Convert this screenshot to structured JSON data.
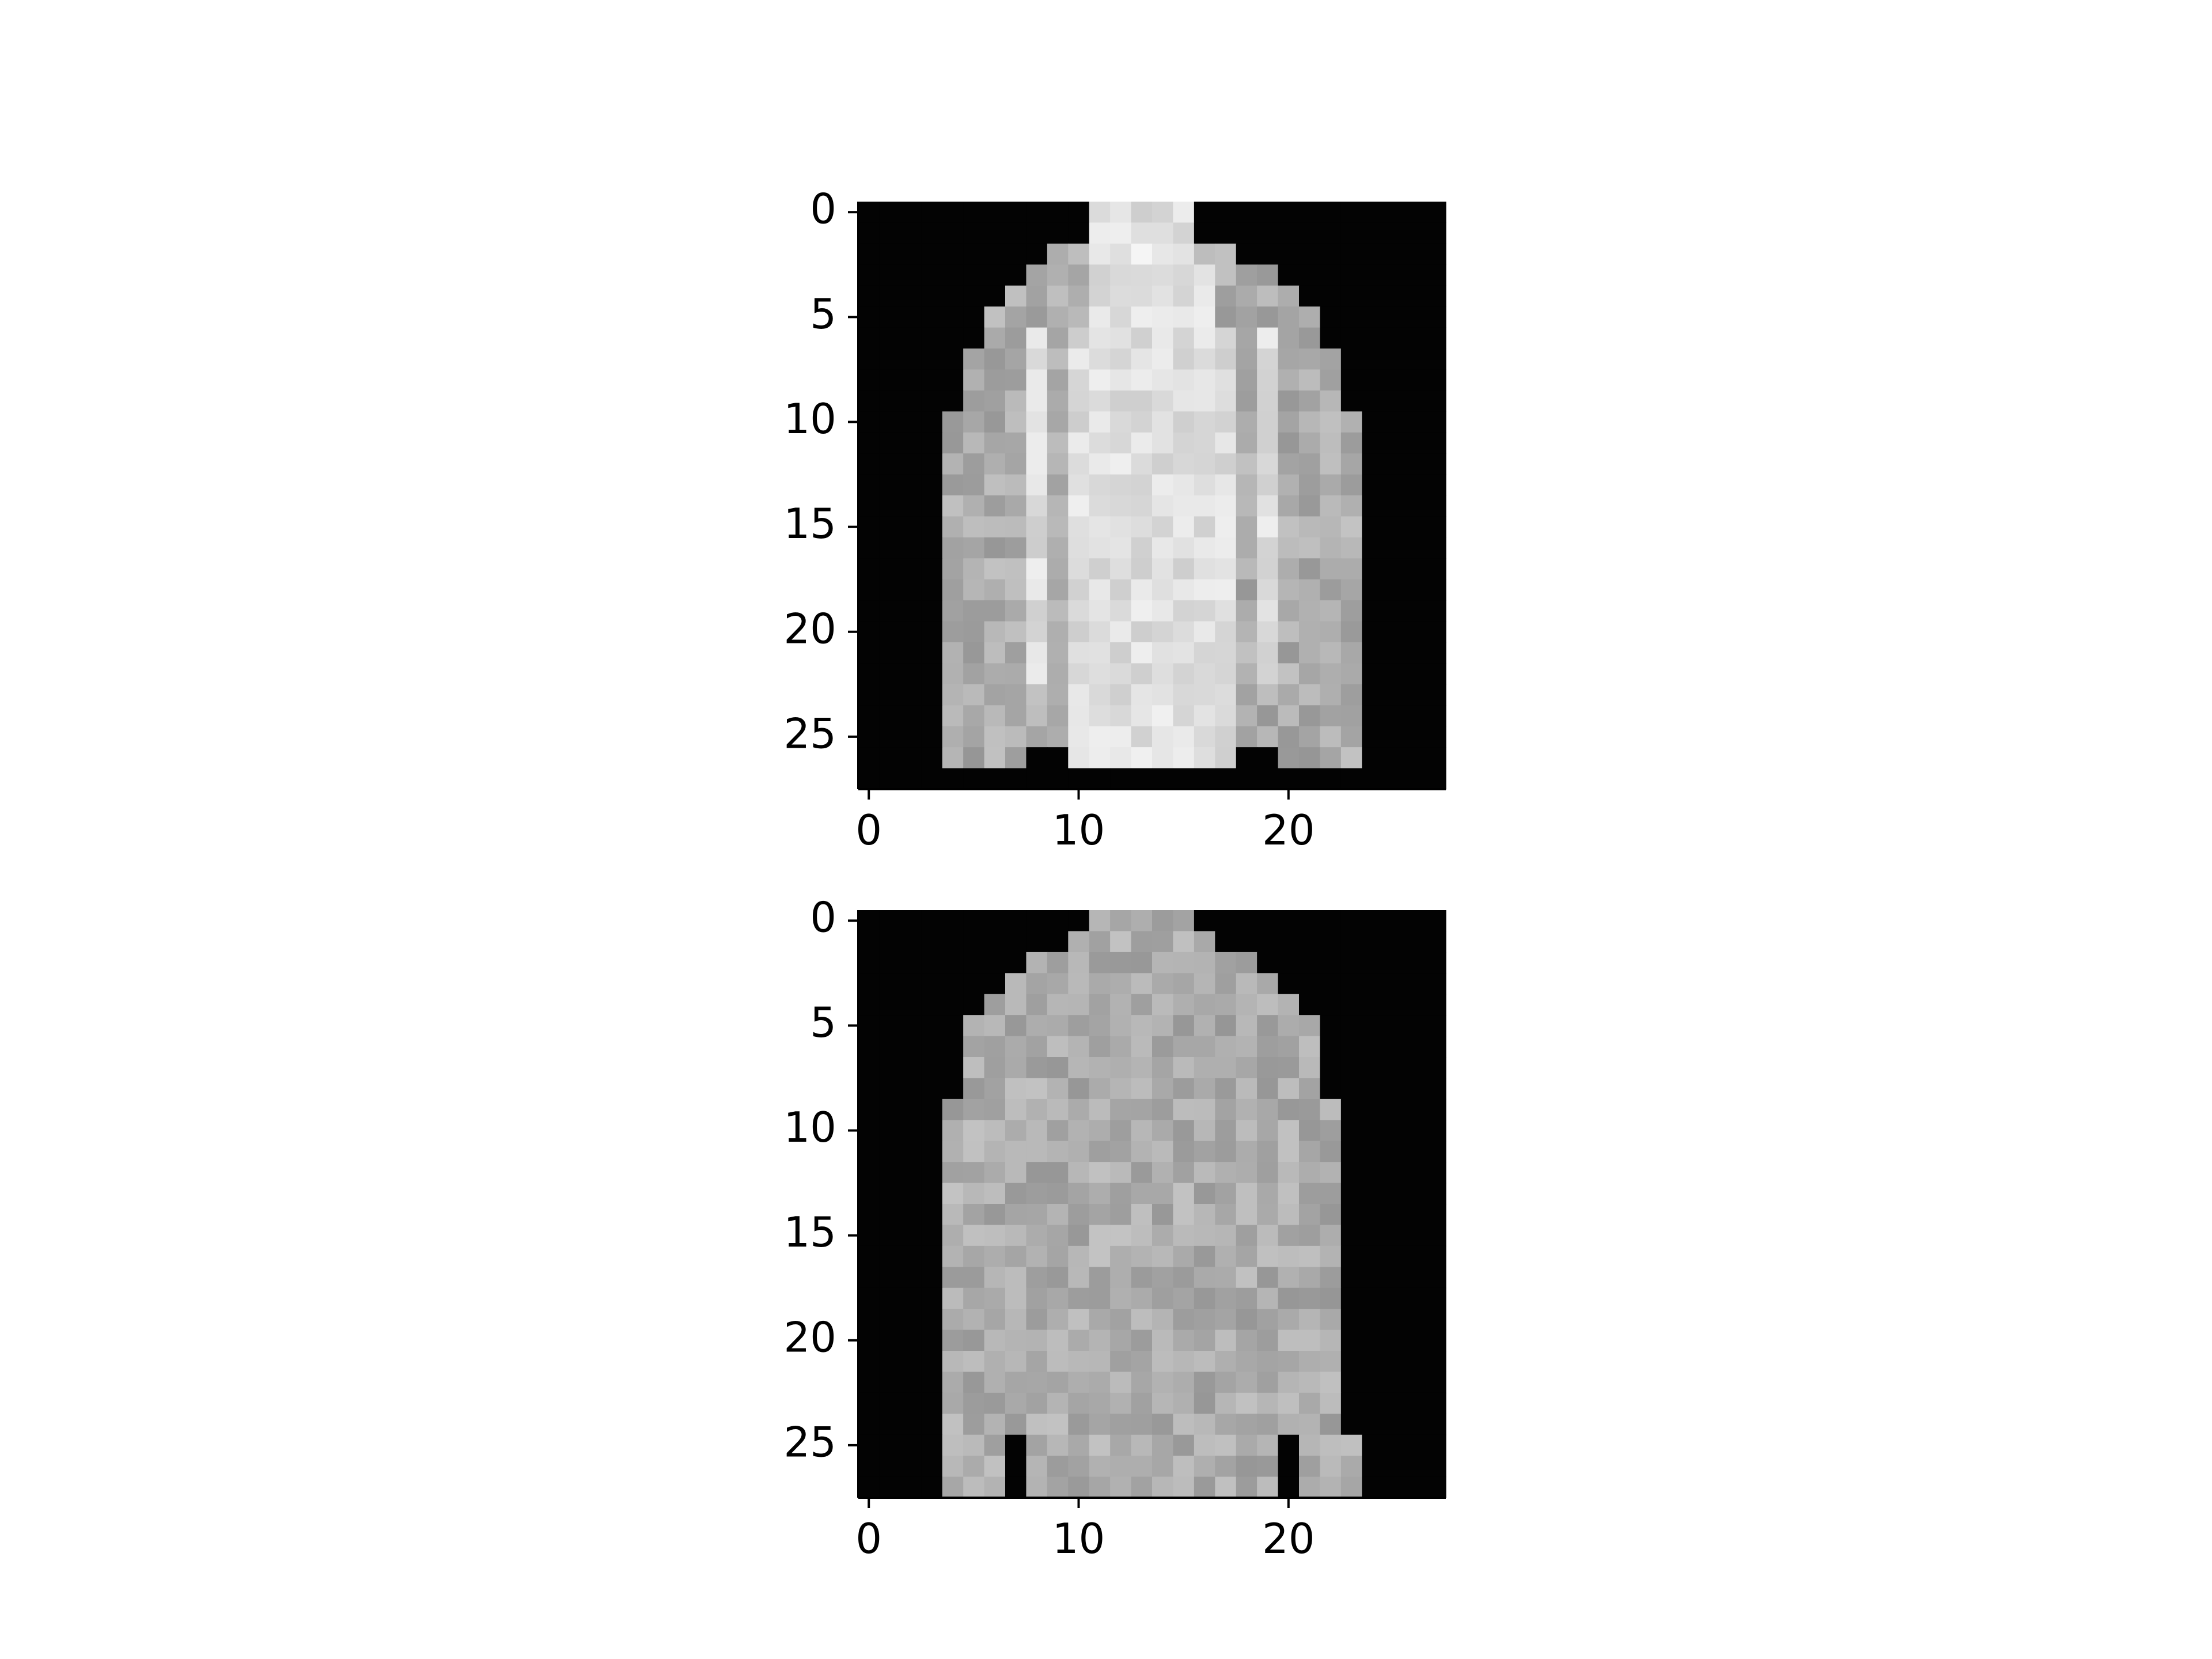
{
  "figure": {
    "background": "#ffffff",
    "colormap": "gray"
  },
  "chart_data": [
    {
      "type": "heatmap",
      "title": "",
      "xlabel": "",
      "ylabel": "",
      "colormap": "gray",
      "xlim": [
        -0.5,
        27.5
      ],
      "ylim": [
        27.5,
        -0.5
      ],
      "xticks": [
        0,
        10,
        20
      ],
      "xtick_labels": [
        "0",
        "10",
        "20"
      ],
      "yticks": [
        0,
        5,
        10,
        15,
        20,
        25
      ],
      "ytick_labels": [
        "0",
        "5",
        "10",
        "15",
        "20",
        "25"
      ],
      "grid": false,
      "legend": "none",
      "value_range": [
        0,
        255
      ],
      "pixels": [
        "0000000000022222000000000000",
        "0000000000022222000000000000",
        "0000000001122322110000000000",
        "0000000011122222211100000000",
        "0000000111122222211110000000",
        "0000001111122222211111000000",
        "0000001121222222221211000000",
        "0000011121222222221211100000",
        "0000011121222222221211100000",
        "0000011121222222221211100000",
        "0000111121222222221211110000",
        "0000111121222222221211110000",
        "0000111121222222221211110000",
        "0000111121222222221211110000",
        "0000111121222222221211110000",
        "0000111121222222221211110000",
        "0000111121222222221211110000",
        "0000111121222222221211110000",
        "0000111121222222221211110000",
        "0000111121222222221211110000",
        "0000111121222222221211110000",
        "0000111121222222221211110000",
        "0000111121222222221211110000",
        "0000111111222222221111110000",
        "0000111111222222221111110000",
        "0000111111222222221111110000",
        "0000111100222222220011110000",
        "0000000000000000000000000000"
      ]
    },
    {
      "type": "heatmap",
      "title": "",
      "xlabel": "",
      "ylabel": "",
      "colormap": "gray",
      "xlim": [
        -0.5,
        27.5
      ],
      "ylim": [
        27.5,
        -0.5
      ],
      "xticks": [
        0,
        10,
        20
      ],
      "xtick_labels": [
        "0",
        "10",
        "20"
      ],
      "yticks": [
        0,
        5,
        10,
        15,
        20,
        25
      ],
      "ytick_labels": [
        "0",
        "5",
        "10",
        "15",
        "20",
        "25"
      ],
      "grid": false,
      "legend": "none",
      "value_range": [
        0,
        255
      ],
      "pixels": [
        "0000000000011111000000000000",
        "0000000000111111100000000000",
        "0000000011111111111000000000",
        "0000000111111111111100000000",
        "0000001111111111111110000000",
        "0000011111111111111111000000",
        "0000011111111111111111000000",
        "0000011111111111111111000000",
        "0000011111111111111111000000",
        "0000111111111111111111100000",
        "0000111111111111111111100000",
        "0000111111111111111111100000",
        "0000111111111111111111100000",
        "0000111111111111111111100000",
        "0000111111111111111111100000",
        "0000111111111111111111100000",
        "0000111111111111111111100000",
        "0000111111111111111111100000",
        "0000111111111111111111100000",
        "0000111111111111111111100000",
        "0000111111111111111111100000",
        "0000111111111111111111100000",
        "0000111111111111111111100000",
        "0000111111111111111111100000",
        "0000111111111111111111100000",
        "0000111011111111111101110000",
        "0000111011111111111101110000",
        "0000111011111111111101110000"
      ]
    }
  ]
}
